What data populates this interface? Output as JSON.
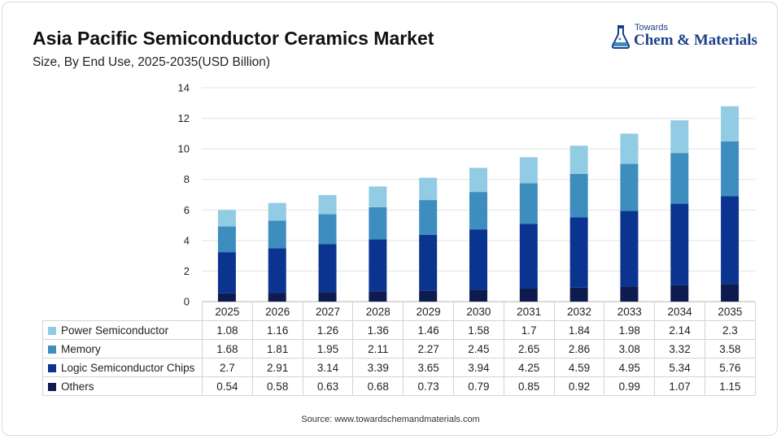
{
  "header": {
    "title": "Asia Pacific Semiconductor Ceramics Market",
    "subtitle": "Size, By End Use, 2025-2035(USD Billion)"
  },
  "logo": {
    "line1": "Towards",
    "line2": "Chem & Materials"
  },
  "source": "Source: www.towardschemandmaterials.com",
  "chart_data": {
    "type": "bar",
    "stacked": true,
    "title": "Asia Pacific Semiconductor Ceramics Market",
    "subtitle": "Size, By End Use, 2025-2035(USD Billion)",
    "xlabel": "",
    "ylabel": "",
    "ylim": [
      0,
      14
    ],
    "yticks": [
      0,
      2,
      4,
      6,
      8,
      10,
      12,
      14
    ],
    "grid": true,
    "legend": "table-bottom",
    "categories": [
      "2025",
      "2026",
      "2027",
      "2028",
      "2029",
      "2030",
      "2031",
      "2032",
      "2033",
      "2034",
      "2035"
    ],
    "series": [
      {
        "name": "Others",
        "color": "#0d1b4f",
        "values": [
          0.54,
          0.58,
          0.63,
          0.68,
          0.73,
          0.79,
          0.85,
          0.92,
          0.99,
          1.07,
          1.15
        ]
      },
      {
        "name": "Logic Semiconductor Chips",
        "color": "#0a3490",
        "values": [
          2.7,
          2.91,
          3.14,
          3.39,
          3.65,
          3.94,
          4.25,
          4.59,
          4.95,
          5.34,
          5.76
        ]
      },
      {
        "name": "Memory",
        "color": "#3d8dbf",
        "values": [
          1.68,
          1.81,
          1.95,
          2.11,
          2.27,
          2.45,
          2.65,
          2.86,
          3.08,
          3.32,
          3.58
        ]
      },
      {
        "name": "Power Semiconductor",
        "color": "#92cbe4",
        "values": [
          1.08,
          1.16,
          1.26,
          1.36,
          1.46,
          1.58,
          1.7,
          1.84,
          1.98,
          2.14,
          2.3
        ]
      }
    ],
    "table_order": [
      "Power Semiconductor",
      "Memory",
      "Logic Semiconductor Chips",
      "Others"
    ]
  }
}
